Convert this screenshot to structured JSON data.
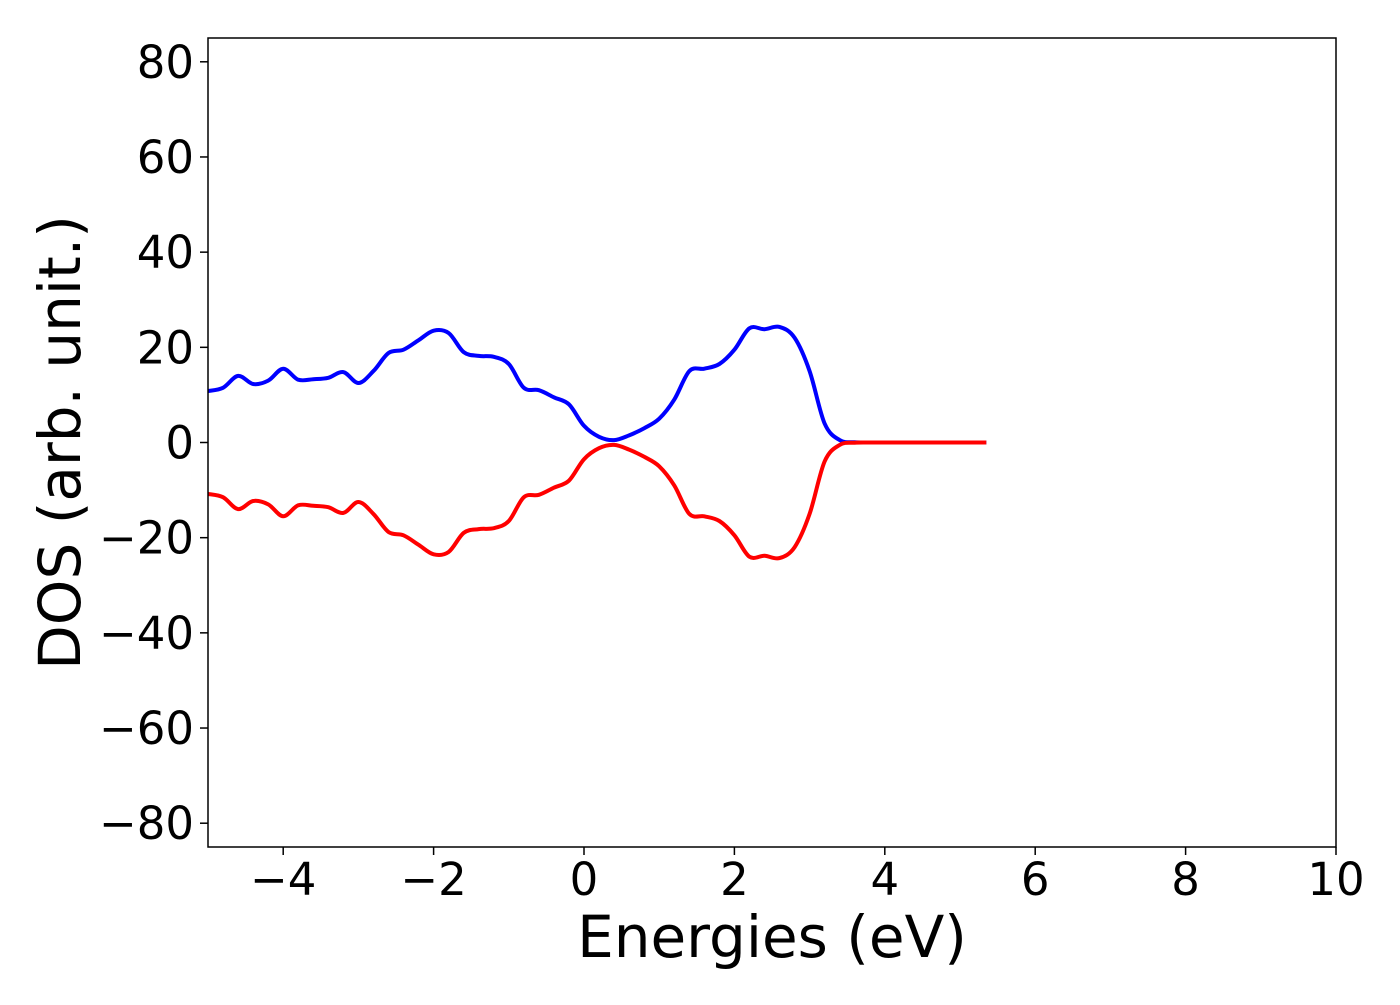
{
  "chart_data": {
    "type": "line",
    "title": "",
    "xlabel": "Energies (eV)",
    "ylabel": "DOS (arb. unit.)",
    "xlim": [
      -5,
      10
    ],
    "ylim": [
      -85,
      85
    ],
    "xticks": [
      -4,
      -2,
      0,
      2,
      4,
      6,
      8,
      10
    ],
    "yticks": [
      -80,
      -60,
      -40,
      -20,
      0,
      20,
      40,
      60,
      80
    ],
    "grid": false,
    "legend": "none",
    "colors": {
      "up": "#0000ff",
      "down": "#ff0000",
      "frame": "#000000"
    },
    "series": [
      {
        "color": "#0000ff",
        "x": [
          -5.0,
          -4.8,
          -4.6,
          -4.4,
          -4.2,
          -4.0,
          -3.8,
          -3.6,
          -3.4,
          -3.2,
          -3.0,
          -2.8,
          -2.6,
          -2.4,
          -2.2,
          -2.0,
          -1.8,
          -1.6,
          -1.4,
          -1.2,
          -1.0,
          -0.8,
          -0.6,
          -0.4,
          -0.2,
          0.0,
          0.2,
          0.4,
          0.6,
          0.8,
          1.0,
          1.2,
          1.4,
          1.6,
          1.8,
          2.0,
          2.2,
          2.4,
          2.6,
          2.8,
          3.0,
          3.2,
          3.4,
          3.6,
          3.8,
          4.0,
          4.5,
          5.0,
          5.35
        ],
        "y": [
          10.8,
          11.5,
          14.0,
          12.3,
          13.0,
          15.5,
          13.2,
          13.3,
          13.6,
          14.8,
          12.5,
          15.0,
          18.8,
          19.5,
          21.5,
          23.5,
          23.0,
          19.0,
          18.2,
          18.0,
          16.5,
          11.5,
          11.0,
          9.5,
          8.0,
          3.5,
          1.2,
          0.5,
          1.5,
          3.0,
          5.0,
          9.0,
          15.0,
          15.5,
          16.5,
          19.5,
          24.0,
          23.8,
          24.3,
          22.0,
          15.0,
          4.0,
          0.5,
          0.05,
          0.0,
          0.0,
          0.0,
          0.0,
          0.0
        ]
      },
      {
        "color": "#ff0000",
        "x": [
          -5.0,
          -4.8,
          -4.6,
          -4.4,
          -4.2,
          -4.0,
          -3.8,
          -3.6,
          -3.4,
          -3.2,
          -3.0,
          -2.8,
          -2.6,
          -2.4,
          -2.2,
          -2.0,
          -1.8,
          -1.6,
          -1.4,
          -1.2,
          -1.0,
          -0.8,
          -0.6,
          -0.4,
          -0.2,
          0.0,
          0.2,
          0.4,
          0.6,
          0.8,
          1.0,
          1.2,
          1.4,
          1.6,
          1.8,
          2.0,
          2.2,
          2.4,
          2.6,
          2.8,
          3.0,
          3.2,
          3.4,
          3.6,
          3.8,
          4.0,
          4.5,
          5.0,
          5.35
        ],
        "y": [
          -10.8,
          -11.5,
          -14.0,
          -12.3,
          -13.0,
          -15.5,
          -13.2,
          -13.3,
          -13.6,
          -14.8,
          -12.5,
          -15.0,
          -18.8,
          -19.5,
          -21.5,
          -23.5,
          -23.0,
          -19.0,
          -18.2,
          -18.0,
          -16.5,
          -11.5,
          -11.0,
          -9.5,
          -8.0,
          -3.5,
          -1.2,
          -0.5,
          -1.5,
          -3.0,
          -5.0,
          -9.0,
          -15.0,
          -15.5,
          -16.5,
          -19.5,
          -24.0,
          -23.8,
          -24.3,
          -22.0,
          -15.0,
          -4.0,
          -0.5,
          -0.05,
          0.0,
          0.0,
          0.0,
          0.0,
          0.0
        ]
      }
    ]
  }
}
